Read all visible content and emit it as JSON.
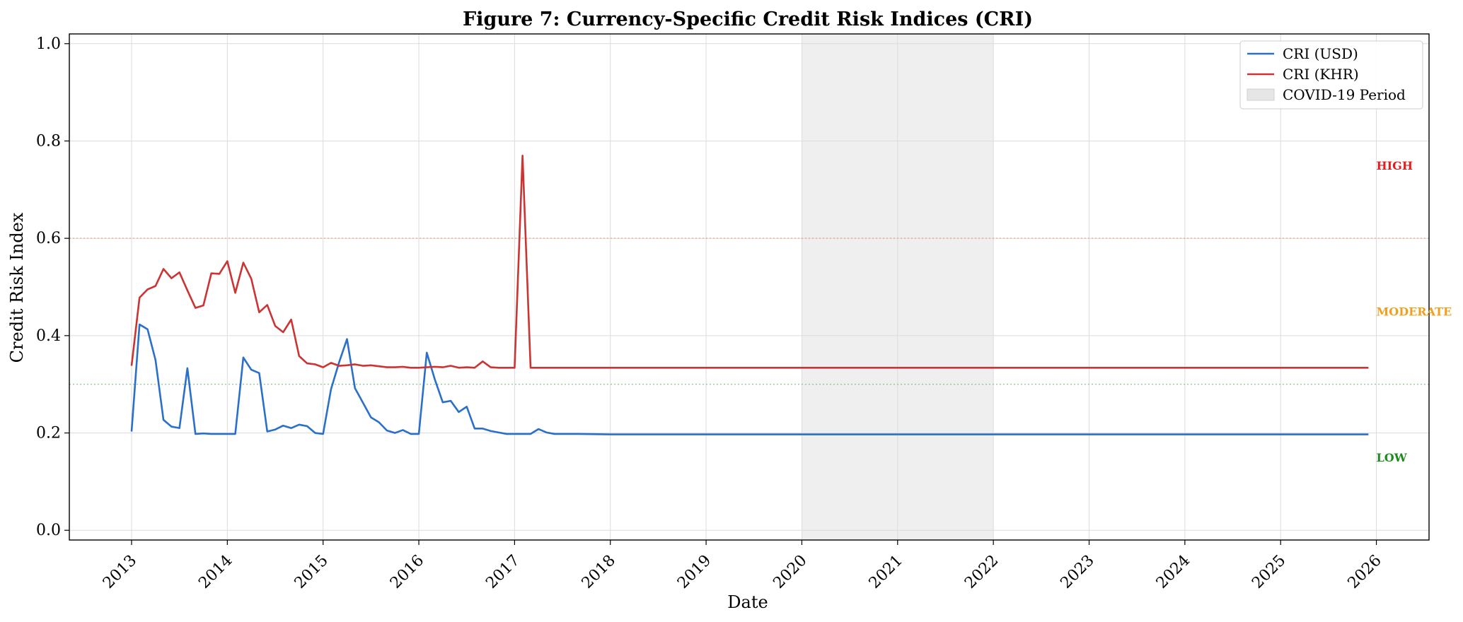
{
  "chart_data": {
    "type": "line",
    "title": "Figure 7: Currency-Specific Credit Risk Indices (CRI)",
    "xlabel": "Date",
    "ylabel": "Credit Risk Index",
    "xlim": [
      2012.35,
      2026.55
    ],
    "ylim": [
      -0.02,
      1.02
    ],
    "x_ticks": [
      2013,
      2014,
      2015,
      2016,
      2017,
      2018,
      2019,
      2020,
      2021,
      2022,
      2023,
      2024,
      2025,
      2026
    ],
    "x_tick_labels": [
      "2013",
      "2014",
      "2015",
      "2016",
      "2017",
      "2018",
      "2019",
      "2020",
      "2021",
      "2022",
      "2023",
      "2024",
      "2025",
      "2026"
    ],
    "y_ticks": [
      0.0,
      0.2,
      0.4,
      0.6,
      0.8,
      1.0
    ],
    "y_tick_labels": [
      "0.0",
      "0.2",
      "0.4",
      "0.6",
      "0.8",
      "1.0"
    ],
    "grid": true,
    "legend_position": "top-right",
    "x_axis_rotation_deg": -45,
    "series": [
      {
        "name": "CRI (USD)",
        "color": "#2a6fc9",
        "points": [
          [
            2013.0,
            0.203
          ],
          [
            2013.083,
            0.423
          ],
          [
            2013.167,
            0.413
          ],
          [
            2013.25,
            0.35
          ],
          [
            2013.333,
            0.227
          ],
          [
            2013.417,
            0.213
          ],
          [
            2013.5,
            0.21
          ],
          [
            2013.583,
            0.333
          ],
          [
            2013.667,
            0.198
          ],
          [
            2013.75,
            0.199
          ],
          [
            2013.833,
            0.198
          ],
          [
            2013.917,
            0.198
          ],
          [
            2014.0,
            0.198
          ],
          [
            2014.083,
            0.198
          ],
          [
            2014.167,
            0.355
          ],
          [
            2014.25,
            0.33
          ],
          [
            2014.333,
            0.323
          ],
          [
            2014.417,
            0.203
          ],
          [
            2014.5,
            0.207
          ],
          [
            2014.583,
            0.215
          ],
          [
            2014.667,
            0.21
          ],
          [
            2014.75,
            0.217
          ],
          [
            2014.833,
            0.214
          ],
          [
            2014.917,
            0.2
          ],
          [
            2015.0,
            0.198
          ],
          [
            2015.083,
            0.29
          ],
          [
            2015.167,
            0.345
          ],
          [
            2015.25,
            0.393
          ],
          [
            2015.333,
            0.292
          ],
          [
            2015.417,
            0.262
          ],
          [
            2015.5,
            0.232
          ],
          [
            2015.583,
            0.222
          ],
          [
            2015.667,
            0.205
          ],
          [
            2015.75,
            0.2
          ],
          [
            2015.833,
            0.206
          ],
          [
            2015.917,
            0.198
          ],
          [
            2016.0,
            0.198
          ],
          [
            2016.083,
            0.365
          ],
          [
            2016.167,
            0.31
          ],
          [
            2016.25,
            0.263
          ],
          [
            2016.333,
            0.266
          ],
          [
            2016.417,
            0.243
          ],
          [
            2016.5,
            0.254
          ],
          [
            2016.583,
            0.209
          ],
          [
            2016.667,
            0.209
          ],
          [
            2016.75,
            0.204
          ],
          [
            2016.833,
            0.201
          ],
          [
            2016.917,
            0.198
          ],
          [
            2017.0,
            0.198
          ],
          [
            2017.083,
            0.198
          ],
          [
            2017.167,
            0.198
          ],
          [
            2017.25,
            0.208
          ],
          [
            2017.333,
            0.201
          ],
          [
            2017.417,
            0.198
          ],
          [
            2017.5,
            0.198
          ],
          [
            2017.667,
            0.198
          ],
          [
            2018.0,
            0.197
          ],
          [
            2019.0,
            0.197
          ],
          [
            2020.0,
            0.197
          ],
          [
            2021.0,
            0.197
          ],
          [
            2022.0,
            0.197
          ],
          [
            2023.0,
            0.197
          ],
          [
            2024.0,
            0.197
          ],
          [
            2025.0,
            0.197
          ],
          [
            2025.917,
            0.197
          ]
        ]
      },
      {
        "name": "CRI (KHR)",
        "color": "#cc3333",
        "points": [
          [
            2013.0,
            0.338
          ],
          [
            2013.083,
            0.478
          ],
          [
            2013.167,
            0.495
          ],
          [
            2013.25,
            0.502
          ],
          [
            2013.333,
            0.537
          ],
          [
            2013.417,
            0.518
          ],
          [
            2013.5,
            0.53
          ],
          [
            2013.583,
            0.493
          ],
          [
            2013.667,
            0.457
          ],
          [
            2013.75,
            0.462
          ],
          [
            2013.833,
            0.528
          ],
          [
            2013.917,
            0.527
          ],
          [
            2014.0,
            0.553
          ],
          [
            2014.083,
            0.488
          ],
          [
            2014.167,
            0.55
          ],
          [
            2014.25,
            0.517
          ],
          [
            2014.333,
            0.448
          ],
          [
            2014.417,
            0.463
          ],
          [
            2014.5,
            0.42
          ],
          [
            2014.583,
            0.407
          ],
          [
            2014.667,
            0.433
          ],
          [
            2014.75,
            0.358
          ],
          [
            2014.833,
            0.343
          ],
          [
            2014.917,
            0.341
          ],
          [
            2015.0,
            0.335
          ],
          [
            2015.083,
            0.344
          ],
          [
            2015.167,
            0.338
          ],
          [
            2015.25,
            0.339
          ],
          [
            2015.333,
            0.341
          ],
          [
            2015.417,
            0.338
          ],
          [
            2015.5,
            0.339
          ],
          [
            2015.583,
            0.337
          ],
          [
            2015.667,
            0.335
          ],
          [
            2015.75,
            0.335
          ],
          [
            2015.833,
            0.336
          ],
          [
            2015.917,
            0.334
          ],
          [
            2016.0,
            0.334
          ],
          [
            2016.083,
            0.335
          ],
          [
            2016.167,
            0.336
          ],
          [
            2016.25,
            0.335
          ],
          [
            2016.333,
            0.338
          ],
          [
            2016.417,
            0.334
          ],
          [
            2016.5,
            0.335
          ],
          [
            2016.583,
            0.334
          ],
          [
            2016.667,
            0.347
          ],
          [
            2016.75,
            0.335
          ],
          [
            2016.833,
            0.334
          ],
          [
            2016.917,
            0.334
          ],
          [
            2017.0,
            0.334
          ],
          [
            2017.083,
            0.77
          ],
          [
            2017.167,
            0.334
          ],
          [
            2017.25,
            0.334
          ],
          [
            2018.0,
            0.334
          ],
          [
            2019.0,
            0.334
          ],
          [
            2020.0,
            0.334
          ],
          [
            2021.0,
            0.334
          ],
          [
            2022.0,
            0.334
          ],
          [
            2023.0,
            0.334
          ],
          [
            2024.0,
            0.334
          ],
          [
            2025.0,
            0.334
          ],
          [
            2025.917,
            0.334
          ]
        ]
      }
    ],
    "shaded_region": {
      "label": "COVID-19 Period",
      "x_start": 2020.0,
      "x_end": 2022.0,
      "color": "#e6e6e6"
    },
    "threshold_lines": [
      {
        "y": 0.6,
        "color": "#e8a07a"
      },
      {
        "y": 0.3,
        "color": "#7cc07c"
      }
    ],
    "zone_labels": [
      {
        "text": "HIGH",
        "y": 0.75,
        "color": "#e11d1d"
      },
      {
        "text": "MODERATE",
        "y": 0.45,
        "color": "#f0a020"
      },
      {
        "text": "LOW",
        "y": 0.15,
        "color": "#1f8a1f"
      }
    ],
    "zone_label_x": 2026.0
  }
}
